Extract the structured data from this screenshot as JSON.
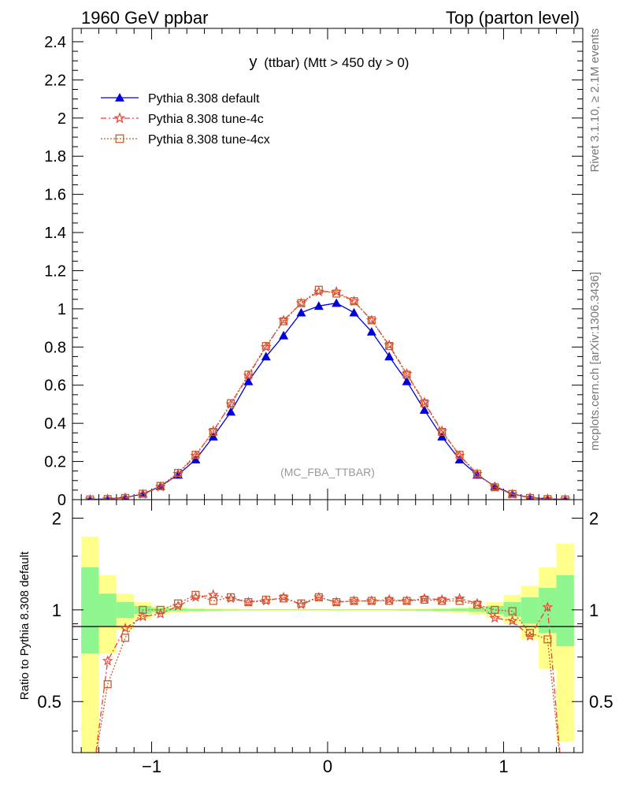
{
  "header": {
    "left": "1960 GeV ppbar",
    "right": "Top (parton level)"
  },
  "plot_title": {
    "main": "y",
    "sub": "(ttbar) (Mtt > 450 dy > 0)"
  },
  "analysis_tag": "(MC_FBA_TTBAR)",
  "side_text": {
    "rivet": "Rivet 3.1.10, ≥ 2.1M events",
    "mcplots": "mcplots.cern.ch [arXiv:1306.3436]"
  },
  "colors": {
    "default": "#0000dd",
    "tune4c": "#e8423a",
    "tune4cx": "#c0602a",
    "band_inner": "#8ff58f",
    "band_outer": "#ffff8c"
  },
  "chart_data": [
    {
      "type": "line",
      "xlim": [
        -1.45,
        1.45
      ],
      "ylim": [
        0,
        2.47
      ],
      "yticks": [
        0,
        0.2,
        0.4,
        0.6,
        0.8,
        1,
        1.2,
        1.4,
        1.6,
        1.8,
        2,
        2.2,
        2.4
      ],
      "ytick_labels": [
        "0",
        "0.2",
        "0.4",
        "0.6",
        "0.8",
        "1",
        "1.2",
        "1.4",
        "1.6",
        "1.8",
        "2",
        "2.2",
        "2.4"
      ],
      "x": [
        -1.35,
        -1.25,
        -1.15,
        -1.05,
        -0.95,
        -0.85,
        -0.75,
        -0.65,
        -0.55,
        -0.45,
        -0.35,
        -0.25,
        -0.15,
        -0.05,
        0.05,
        0.15,
        0.25,
        0.35,
        0.45,
        0.55,
        0.65,
        0.75,
        0.85,
        0.95,
        1.05,
        1.15,
        1.25,
        1.35
      ],
      "series": [
        {
          "name": "Pythia 8.308 default",
          "marker": "triangle",
          "dash": "solid",
          "values": [
            0.001,
            0.004,
            0.011,
            0.03,
            0.07,
            0.13,
            0.21,
            0.33,
            0.46,
            0.62,
            0.75,
            0.86,
            0.98,
            1.015,
            1.03,
            0.98,
            0.88,
            0.75,
            0.62,
            0.47,
            0.33,
            0.21,
            0.13,
            0.07,
            0.03,
            0.011,
            0.004,
            0.001
          ]
        },
        {
          "name": "Pythia 8.308 tune-4c",
          "marker": "star",
          "dash": "dashdot",
          "values": [
            0.001,
            0.003,
            0.009,
            0.028,
            0.067,
            0.135,
            0.23,
            0.36,
            0.5,
            0.65,
            0.8,
            0.94,
            1.03,
            1.09,
            1.09,
            1.04,
            0.94,
            0.81,
            0.66,
            0.51,
            0.36,
            0.23,
            0.135,
            0.066,
            0.028,
            0.01,
            0.004,
            0.001
          ]
        },
        {
          "name": "Pythia 8.308 tune-4cx",
          "marker": "square",
          "dash": "dotted",
          "values": [
            0.001,
            0.003,
            0.009,
            0.031,
            0.072,
            0.14,
            0.235,
            0.355,
            0.505,
            0.655,
            0.805,
            0.935,
            1.03,
            1.1,
            1.08,
            1.04,
            0.94,
            0.805,
            0.655,
            0.505,
            0.355,
            0.235,
            0.135,
            0.065,
            0.03,
            0.009,
            0.003,
            0.001
          ]
        }
      ]
    },
    {
      "type": "line",
      "ylabel": "Ratio to Pythia 8.308 default",
      "xlim": [
        -1.45,
        1.45
      ],
      "ylim": [
        0.34,
        2.3
      ],
      "xticks": [
        -1,
        0,
        1
      ],
      "xtick_labels": [
        "−1",
        "0",
        "1"
      ],
      "yticks": [
        0.5,
        1,
        2
      ],
      "ytick_labels": [
        "0.5",
        "1",
        "2"
      ],
      "bands": {
        "x": [
          -1.35,
          -1.25,
          -1.15,
          -1.05,
          -0.95,
          -0.85,
          -0.75,
          -0.65,
          -0.55,
          -0.45,
          -0.35,
          -0.25,
          -0.15,
          -0.05,
          0.05,
          0.15,
          0.25,
          0.35,
          0.45,
          0.55,
          0.65,
          0.75,
          0.85,
          0.95,
          1.05,
          1.15,
          1.25,
          1.35
        ],
        "inner_low": [
          0.72,
          0.88,
          0.94,
          0.97,
          0.985,
          0.99,
          0.993,
          0.995,
          0.996,
          0.997,
          0.997,
          0.997,
          0.997,
          0.997,
          0.997,
          0.997,
          0.997,
          0.997,
          0.996,
          0.995,
          0.993,
          0.99,
          0.985,
          0.97,
          0.95,
          0.9,
          0.84,
          0.76
        ],
        "inner_high": [
          1.38,
          1.13,
          1.06,
          1.03,
          1.015,
          1.01,
          1.007,
          1.005,
          1.004,
          1.003,
          1.003,
          1.003,
          1.003,
          1.003,
          1.003,
          1.003,
          1.003,
          1.003,
          1.004,
          1.005,
          1.007,
          1.01,
          1.015,
          1.03,
          1.06,
          1.1,
          1.18,
          1.3
        ],
        "outer_low": [
          0.34,
          0.72,
          0.86,
          0.93,
          0.965,
          0.98,
          0.985,
          0.99,
          0.992,
          0.994,
          0.994,
          0.994,
          0.994,
          0.994,
          0.994,
          0.994,
          0.994,
          0.994,
          0.992,
          0.99,
          0.985,
          0.98,
          0.965,
          0.94,
          0.9,
          0.8,
          0.64,
          0.37
        ],
        "outer_high": [
          1.74,
          1.3,
          1.13,
          1.06,
          1.03,
          1.02,
          1.014,
          1.01,
          1.008,
          1.006,
          1.006,
          1.006,
          1.006,
          1.006,
          1.006,
          1.006,
          1.006,
          1.006,
          1.008,
          1.01,
          1.014,
          1.02,
          1.03,
          1.06,
          1.12,
          1.2,
          1.38,
          1.65
        ]
      },
      "series": [
        {
          "name": "Pythia 8.308 tune-4c",
          "marker": "star",
          "dash": "dashdot",
          "values": [
            0.24,
            0.68,
            0.87,
            0.95,
            0.97,
            1.03,
            1.1,
            1.12,
            1.09,
            1.06,
            1.07,
            1.1,
            1.04,
            1.1,
            1.06,
            1.07,
            1.07,
            1.08,
            1.07,
            1.09,
            1.08,
            1.09,
            1.05,
            0.94,
            0.92,
            0.82,
            1.02,
            0.21
          ]
        },
        {
          "name": "Pythia 8.308 tune-4cx",
          "marker": "square",
          "dash": "dotted",
          "values": [
            0.25,
            0.57,
            0.81,
            1.0,
            1.0,
            1.05,
            1.12,
            1.07,
            1.1,
            1.06,
            1.08,
            1.09,
            1.05,
            1.1,
            1.06,
            1.07,
            1.07,
            1.07,
            1.07,
            1.08,
            1.07,
            1.07,
            1.04,
            1.0,
            0.99,
            0.84,
            0.8,
            0.22
          ]
        }
      ]
    }
  ]
}
